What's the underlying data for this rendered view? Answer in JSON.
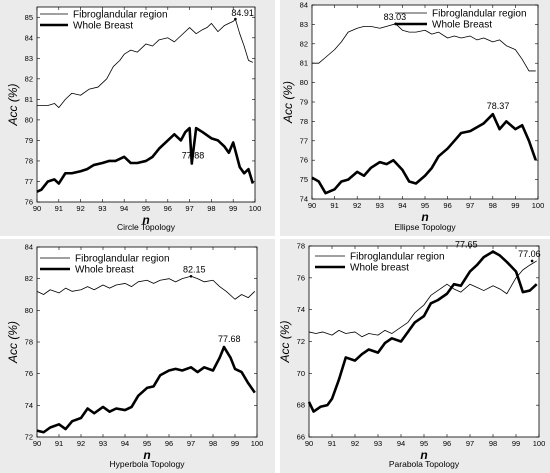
{
  "chart_data": [
    {
      "type": "line",
      "caption": "Circle Topology",
      "xlabel": "n",
      "ylabel": "Acc (%)",
      "xlim": [
        90,
        100
      ],
      "ylim": [
        76,
        85.5
      ],
      "xticks": [
        90,
        91,
        92,
        93,
        94,
        95,
        96,
        97,
        98,
        99,
        100
      ],
      "yticks": [
        76,
        77,
        78,
        79,
        80,
        81,
        82,
        83,
        84,
        85
      ],
      "legend_position": "top-left",
      "annotations": [
        {
          "text": "84.91",
          "x": 99.1,
          "y": 84.91
        },
        {
          "text": "77.88",
          "x": 97.1,
          "y": 77.88
        }
      ],
      "series": [
        {
          "name": "Fibroglandular region",
          "style": "thin",
          "x": [
            90,
            90.5,
            90.8,
            91.0,
            91.3,
            91.6,
            92.0,
            92.4,
            92.8,
            93.2,
            93.5,
            93.8,
            94.0,
            94.3,
            94.6,
            95.0,
            95.3,
            95.6,
            96.0,
            96.3,
            96.6,
            96.8,
            97.0,
            97.3,
            97.6,
            97.8,
            98.0,
            98.3,
            98.6,
            98.8,
            99.0,
            99.1,
            99.3,
            99.5,
            99.7,
            99.9
          ],
          "values": [
            80.7,
            80.7,
            80.8,
            80.6,
            81.0,
            81.3,
            81.2,
            81.5,
            81.6,
            82.0,
            82.6,
            82.9,
            83.2,
            83.4,
            83.3,
            83.7,
            83.6,
            83.9,
            84.0,
            83.8,
            84.1,
            84.3,
            84.5,
            84.2,
            84.4,
            84.5,
            84.7,
            84.3,
            84.6,
            84.7,
            84.8,
            84.91,
            84.2,
            83.6,
            82.9,
            82.8
          ]
        },
        {
          "name": "Whole Breast",
          "style": "thick",
          "x": [
            90,
            90.2,
            90.5,
            90.8,
            91.0,
            91.3,
            91.6,
            92.0,
            92.3,
            92.6,
            93.0,
            93.3,
            93.6,
            94.0,
            94.3,
            94.6,
            95.0,
            95.3,
            95.6,
            96.0,
            96.3,
            96.6,
            96.8,
            97.0,
            97.1,
            97.3,
            97.6,
            98.0,
            98.3,
            98.6,
            98.8,
            99.0,
            99.3,
            99.5,
            99.7,
            99.9
          ],
          "values": [
            76.5,
            76.6,
            77.0,
            77.1,
            76.9,
            77.4,
            77.4,
            77.5,
            77.6,
            77.8,
            77.9,
            78.0,
            78.0,
            78.2,
            77.9,
            77.9,
            78.0,
            78.2,
            78.6,
            79.0,
            79.3,
            79.0,
            79.4,
            79.6,
            77.88,
            79.6,
            79.4,
            79.1,
            79.0,
            78.7,
            78.4,
            78.9,
            77.7,
            77.4,
            77.6,
            76.9
          ]
        }
      ]
    },
    {
      "type": "line",
      "caption": "Ellipse Topology",
      "xlabel": "n",
      "ylabel": "Acc (%)",
      "xlim": [
        90,
        100
      ],
      "ylim": [
        74,
        84
      ],
      "xticks": [
        90,
        91,
        92,
        93,
        94,
        95,
        96,
        97,
        98,
        99,
        100
      ],
      "yticks": [
        74,
        75,
        76,
        77,
        78,
        79,
        80,
        81,
        82,
        83,
        84
      ],
      "legend_position": "top-right",
      "annotations": [
        {
          "text": "83.03",
          "x": 93.7,
          "y": 83.03
        },
        {
          "text": "78.37",
          "x": 98.0,
          "y": 78.37
        }
      ],
      "series": [
        {
          "name": "Fibroglandular region",
          "style": "thin",
          "x": [
            90,
            90.3,
            90.6,
            91.0,
            91.3,
            91.6,
            92.0,
            92.3,
            92.6,
            93.0,
            93.3,
            93.7,
            94.0,
            94.3,
            94.6,
            95.0,
            95.3,
            95.6,
            96.0,
            96.3,
            96.6,
            97.0,
            97.3,
            97.6,
            98.0,
            98.3,
            98.6,
            99.0,
            99.3,
            99.6,
            99.9
          ],
          "values": [
            81.0,
            81.0,
            81.3,
            81.7,
            82.1,
            82.6,
            82.8,
            82.9,
            82.9,
            82.8,
            82.9,
            83.03,
            82.7,
            82.6,
            82.6,
            82.7,
            82.5,
            82.6,
            82.3,
            82.4,
            82.3,
            82.4,
            82.2,
            82.3,
            82.1,
            82.2,
            81.9,
            81.7,
            81.2,
            80.6,
            80.6
          ]
        },
        {
          "name": "Whole Breast",
          "style": "thick",
          "x": [
            90,
            90.3,
            90.6,
            91.0,
            91.3,
            91.6,
            92.0,
            92.3,
            92.6,
            93.0,
            93.3,
            93.6,
            94.0,
            94.3,
            94.6,
            95.0,
            95.3,
            95.6,
            96.0,
            96.3,
            96.6,
            97.0,
            97.3,
            97.6,
            98.0,
            98.3,
            98.6,
            99.0,
            99.3,
            99.6,
            99.9
          ],
          "values": [
            75.1,
            74.9,
            74.3,
            74.5,
            74.9,
            75.0,
            75.4,
            75.2,
            75.6,
            75.9,
            75.8,
            76.0,
            75.5,
            74.9,
            74.8,
            75.2,
            75.6,
            76.2,
            76.6,
            77.0,
            77.4,
            77.5,
            77.7,
            77.9,
            78.37,
            77.6,
            78.0,
            77.6,
            77.8,
            77.0,
            76.0
          ]
        }
      ]
    },
    {
      "type": "line",
      "caption": "Hyperbola Topology",
      "xlabel": "n",
      "ylabel": "Acc (%)",
      "xlim": [
        90,
        100
      ],
      "ylim": [
        72,
        84
      ],
      "xticks": [
        90,
        91,
        92,
        93,
        94,
        95,
        96,
        97,
        98,
        99,
        100
      ],
      "yticks": [
        72,
        74,
        76,
        78,
        80,
        82,
        84
      ],
      "legend_position": "top-left",
      "annotations": [
        {
          "text": "82.15",
          "x": 97.0,
          "y": 82.15
        },
        {
          "text": "77.68",
          "x": 98.5,
          "y": 77.68
        }
      ],
      "series": [
        {
          "name": "Fibroglandular region",
          "style": "thin",
          "x": [
            90,
            90.3,
            90.6,
            91.0,
            91.3,
            91.6,
            92.0,
            92.3,
            92.6,
            93.0,
            93.3,
            93.6,
            94.0,
            94.3,
            94.6,
            95.0,
            95.3,
            95.6,
            96.0,
            96.3,
            96.6,
            97.0,
            97.3,
            97.6,
            98.0,
            98.3,
            98.6,
            99.0,
            99.3,
            99.6,
            99.9
          ],
          "values": [
            81.2,
            81.0,
            81.3,
            81.1,
            81.4,
            81.2,
            81.3,
            81.5,
            81.3,
            81.6,
            81.4,
            81.6,
            81.7,
            81.5,
            81.8,
            81.9,
            81.7,
            81.9,
            82.0,
            81.8,
            82.0,
            82.15,
            82.0,
            81.8,
            81.9,
            81.5,
            81.2,
            80.7,
            81.0,
            80.8,
            81.2
          ]
        },
        {
          "name": "Whole breast",
          "style": "thick",
          "x": [
            90,
            90.3,
            90.6,
            91.0,
            91.3,
            91.6,
            92.0,
            92.3,
            92.6,
            93.0,
            93.3,
            93.6,
            94.0,
            94.3,
            94.6,
            95.0,
            95.3,
            95.6,
            96.0,
            96.3,
            96.6,
            97.0,
            97.3,
            97.6,
            98.0,
            98.3,
            98.5,
            98.8,
            99.0,
            99.3,
            99.6,
            99.9
          ],
          "values": [
            72.4,
            72.3,
            72.6,
            72.8,
            72.5,
            73.0,
            73.2,
            73.8,
            73.5,
            73.9,
            73.6,
            73.8,
            73.7,
            73.9,
            74.6,
            75.1,
            75.2,
            75.9,
            76.2,
            76.3,
            76.2,
            76.4,
            76.1,
            76.4,
            76.2,
            77.0,
            77.68,
            77.0,
            76.3,
            76.1,
            75.4,
            74.8
          ]
        }
      ]
    },
    {
      "type": "line",
      "caption": "Parabola Topology",
      "xlabel": "n",
      "ylabel": "Acc (%)",
      "xlim": [
        90,
        100
      ],
      "ylim": [
        66,
        78
      ],
      "xticks": [
        90,
        91,
        92,
        93,
        94,
        95,
        96,
        97,
        98,
        99,
        100
      ],
      "yticks": [
        66,
        68,
        70,
        72,
        74,
        76,
        78
      ],
      "legend_position": "top-left",
      "annotations": [
        {
          "text": "77.65",
          "x": 98.0,
          "y": 77.65
        },
        {
          "text": "77.06",
          "x": 99.7,
          "y": 77.06
        }
      ],
      "series": [
        {
          "name": "Fibroglandular region",
          "style": "thin",
          "x": [
            90,
            90.3,
            90.6,
            91.0,
            91.3,
            91.6,
            92.0,
            92.3,
            92.6,
            93.0,
            93.3,
            93.6,
            94.0,
            94.3,
            94.6,
            95.0,
            95.3,
            95.6,
            96.0,
            96.3,
            96.6,
            97.0,
            97.3,
            97.6,
            98.0,
            98.3,
            98.6,
            99.0,
            99.3,
            99.6,
            99.9
          ],
          "values": [
            72.6,
            72.5,
            72.6,
            72.4,
            72.7,
            72.5,
            72.6,
            72.3,
            72.5,
            72.4,
            72.7,
            72.5,
            72.9,
            73.2,
            73.8,
            74.3,
            74.9,
            75.2,
            75.6,
            75.3,
            75.1,
            75.6,
            75.4,
            75.2,
            75.5,
            75.3,
            75.0,
            76.0,
            76.5,
            76.8,
            77.06
          ]
        },
        {
          "name": "Whole breast",
          "style": "thick",
          "x": [
            90,
            90.2,
            90.5,
            90.8,
            91.0,
            91.3,
            91.6,
            92.0,
            92.3,
            92.6,
            93.0,
            93.3,
            93.6,
            94.0,
            94.3,
            94.6,
            95.0,
            95.3,
            95.6,
            96.0,
            96.3,
            96.6,
            97.0,
            97.3,
            97.6,
            98.0,
            98.3,
            98.6,
            99.0,
            99.3,
            99.6,
            99.9
          ],
          "values": [
            68.2,
            67.6,
            67.9,
            68.0,
            68.4,
            69.6,
            71.0,
            70.8,
            71.2,
            71.5,
            71.3,
            71.9,
            72.2,
            72.0,
            72.6,
            73.2,
            73.6,
            74.4,
            74.6,
            75.0,
            75.6,
            75.5,
            76.4,
            76.8,
            77.3,
            77.65,
            77.4,
            77.0,
            76.4,
            75.1,
            75.2,
            75.6
          ]
        }
      ]
    }
  ]
}
